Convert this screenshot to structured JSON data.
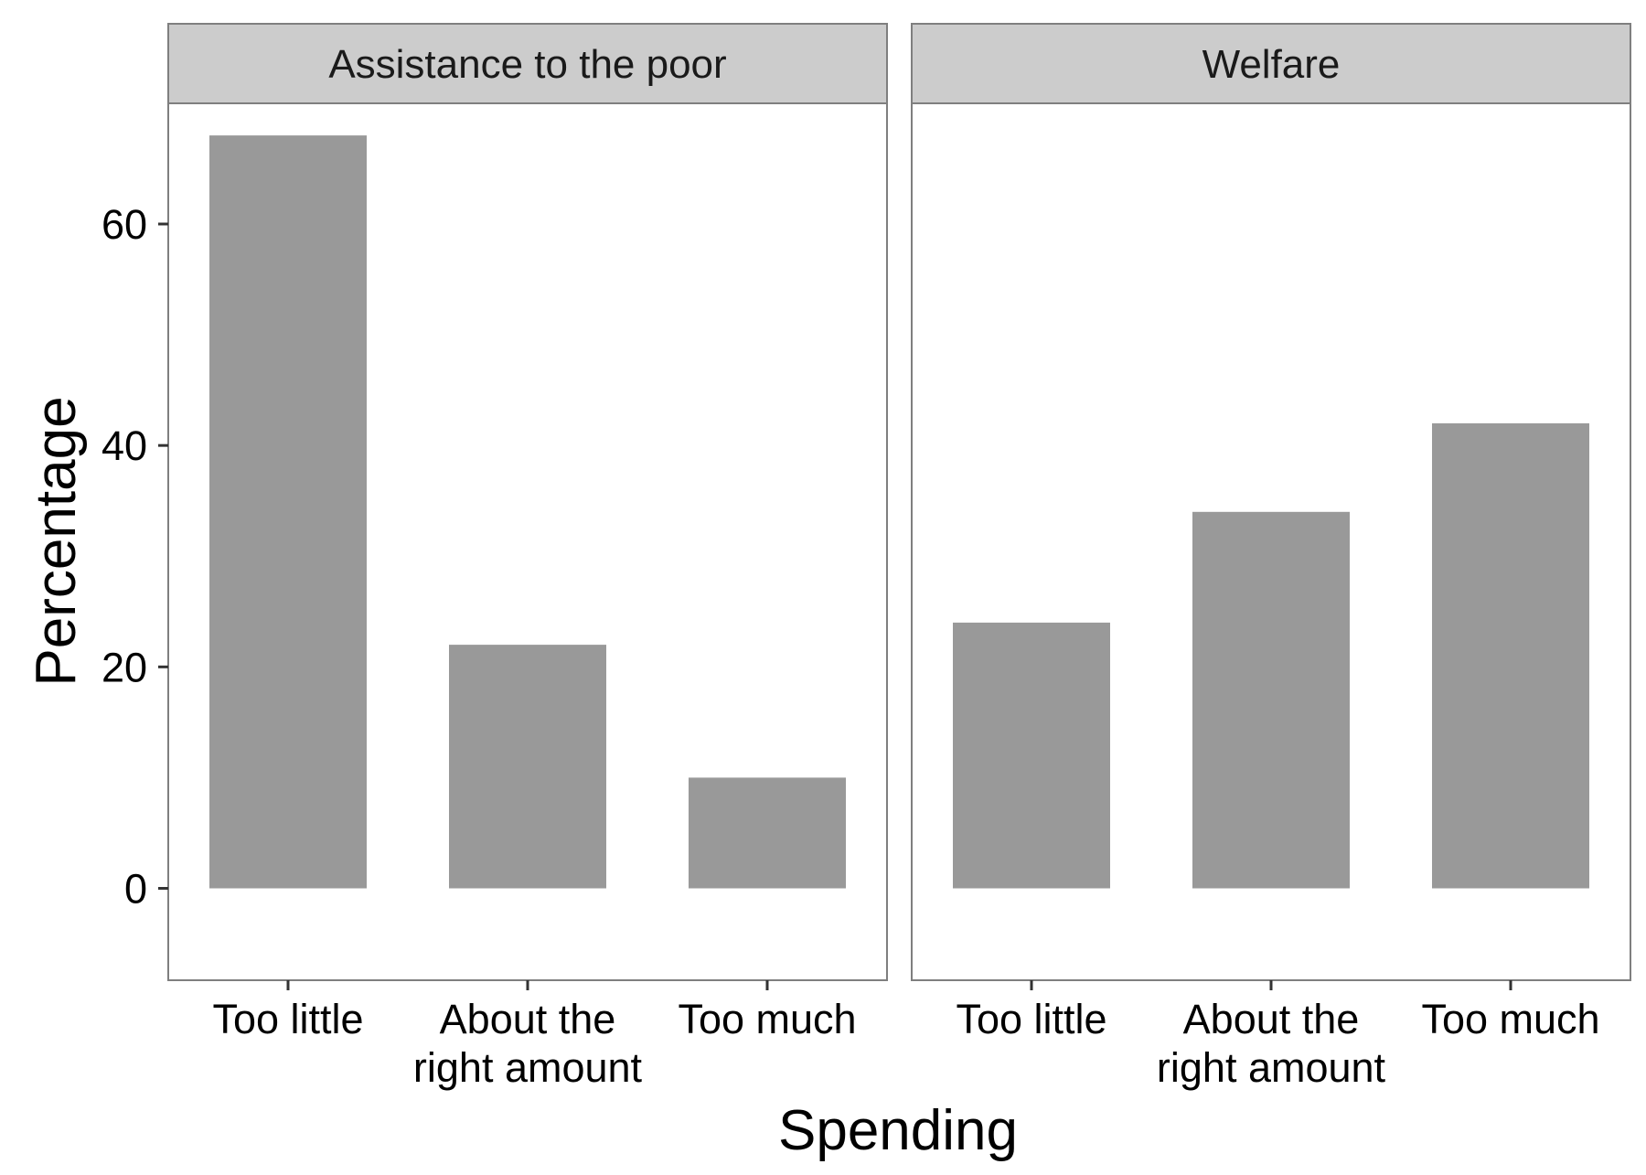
{
  "chart_data": {
    "type": "bar",
    "ylabel": "Percentage",
    "xlabel": "Spending",
    "ylim": [
      -8.3,
      70.9
    ],
    "yticks": [
      0,
      20,
      40,
      60
    ],
    "grid": false,
    "legend": "none",
    "colors": {
      "bar": "#999999",
      "strip": "#cccccc",
      "border": "#7f7f7f"
    },
    "categories": [
      [
        "Too little"
      ],
      [
        "About the",
        "right amount"
      ],
      [
        "Too much"
      ]
    ],
    "panels": [
      {
        "name": "Assistance to the poor",
        "values": [
          68,
          22,
          10
        ]
      },
      {
        "name": "Welfare",
        "values": [
          24,
          34,
          42
        ]
      }
    ]
  }
}
